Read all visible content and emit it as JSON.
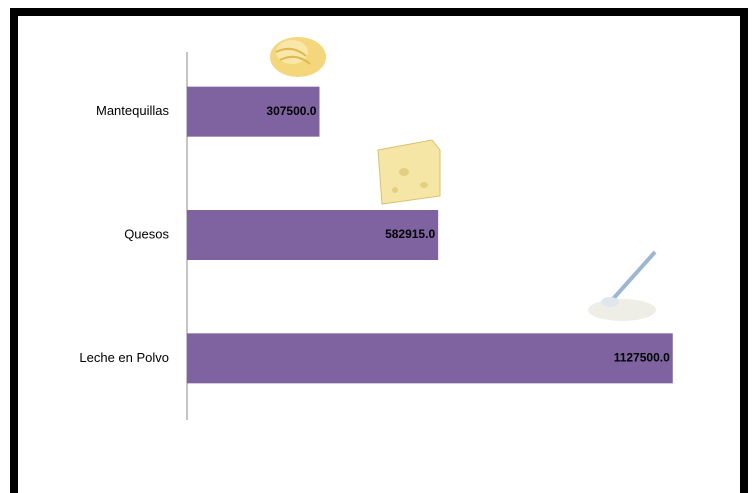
{
  "chart_data": {
    "type": "bar",
    "orientation": "horizontal",
    "categories": [
      "Mantequillas",
      "Quesos",
      "Leche en Polvo"
    ],
    "values": [
      307500,
      582915,
      1127500
    ],
    "value_labels": [
      "307500.0",
      "582915.0",
      "1127500.0"
    ],
    "color": "#7f63a1",
    "xlim": [
      0,
      1200000
    ]
  }
}
